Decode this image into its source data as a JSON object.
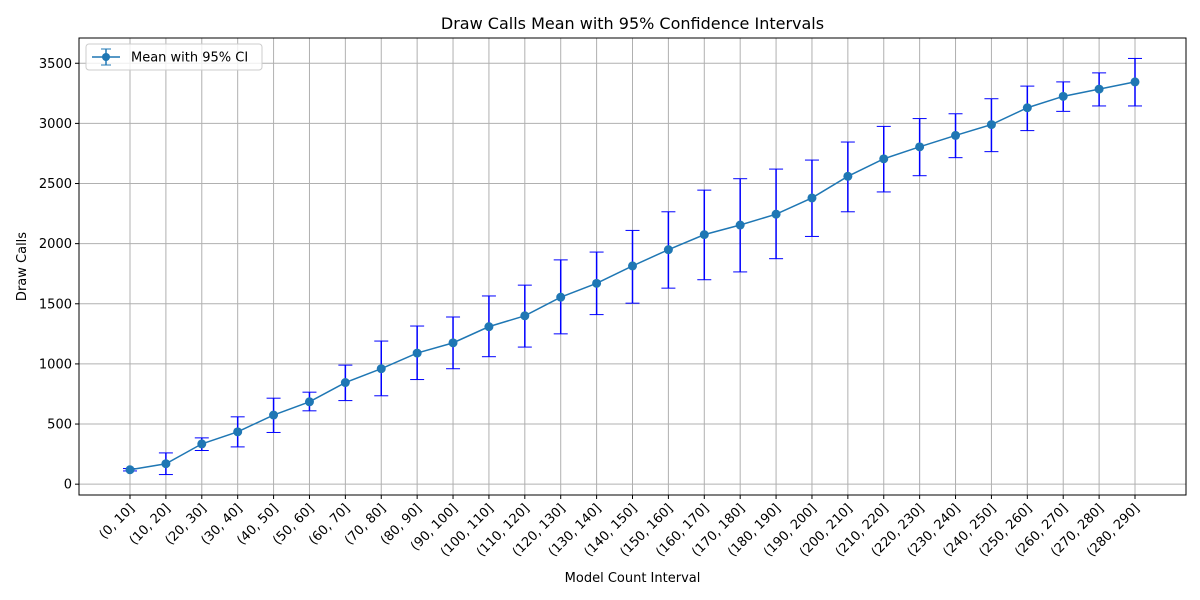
{
  "chart_data": {
    "type": "line",
    "title": "Draw Calls Mean with 95% Confidence Intervals",
    "xlabel": "Model Count Interval",
    "ylabel": "Draw Calls",
    "categories": [
      "(0, 10]",
      "(10, 20]",
      "(20, 30]",
      "(30, 40]",
      "(40, 50]",
      "(50, 60]",
      "(60, 70]",
      "(70, 80]",
      "(80, 90]",
      "(90, 100]",
      "(100, 110]",
      "(110, 120]",
      "(120, 130]",
      "(130, 140]",
      "(140, 150]",
      "(150, 160]",
      "(160, 170]",
      "(170, 180]",
      "(180, 190]",
      "(190, 200]",
      "(200, 210]",
      "(210, 220]",
      "(220, 230]",
      "(230, 240]",
      "(240, 250]",
      "(250, 260]",
      "(260, 270]",
      "(270, 280]",
      "(280, 290]"
    ],
    "series": [
      {
        "name": "Mean with 95% CI",
        "values": [
          120,
          170,
          335,
          435,
          575,
          685,
          845,
          960,
          1090,
          1175,
          1310,
          1400,
          1555,
          1670,
          1815,
          1950,
          2075,
          2155,
          2245,
          2380,
          2560,
          2705,
          2805,
          2900,
          2990,
          3130,
          3225,
          3285,
          3345
        ],
        "ci_lower": [
          110,
          80,
          280,
          310,
          430,
          610,
          695,
          735,
          870,
          960,
          1060,
          1140,
          1250,
          1410,
          1505,
          1630,
          1700,
          1765,
          1875,
          2060,
          2265,
          2430,
          2565,
          2715,
          2765,
          2940,
          3100,
          3145,
          3145
        ],
        "ci_upper": [
          130,
          260,
          385,
          560,
          715,
          765,
          990,
          1190,
          1315,
          1390,
          1565,
          1655,
          1865,
          1930,
          2110,
          2265,
          2445,
          2540,
          2620,
          2695,
          2845,
          2975,
          3040,
          3080,
          3205,
          3310,
          3345,
          3420,
          3540
        ]
      }
    ],
    "ylim": [
      -90,
      3710
    ],
    "yticks": [
      0,
      500,
      1000,
      1500,
      2000,
      2500,
      3000,
      3500
    ],
    "grid": true,
    "legend_position": "top-left",
    "colors": {
      "line": "#1f77b4",
      "errorbar": "#0000ff",
      "grid": "#b0b0b0"
    }
  }
}
